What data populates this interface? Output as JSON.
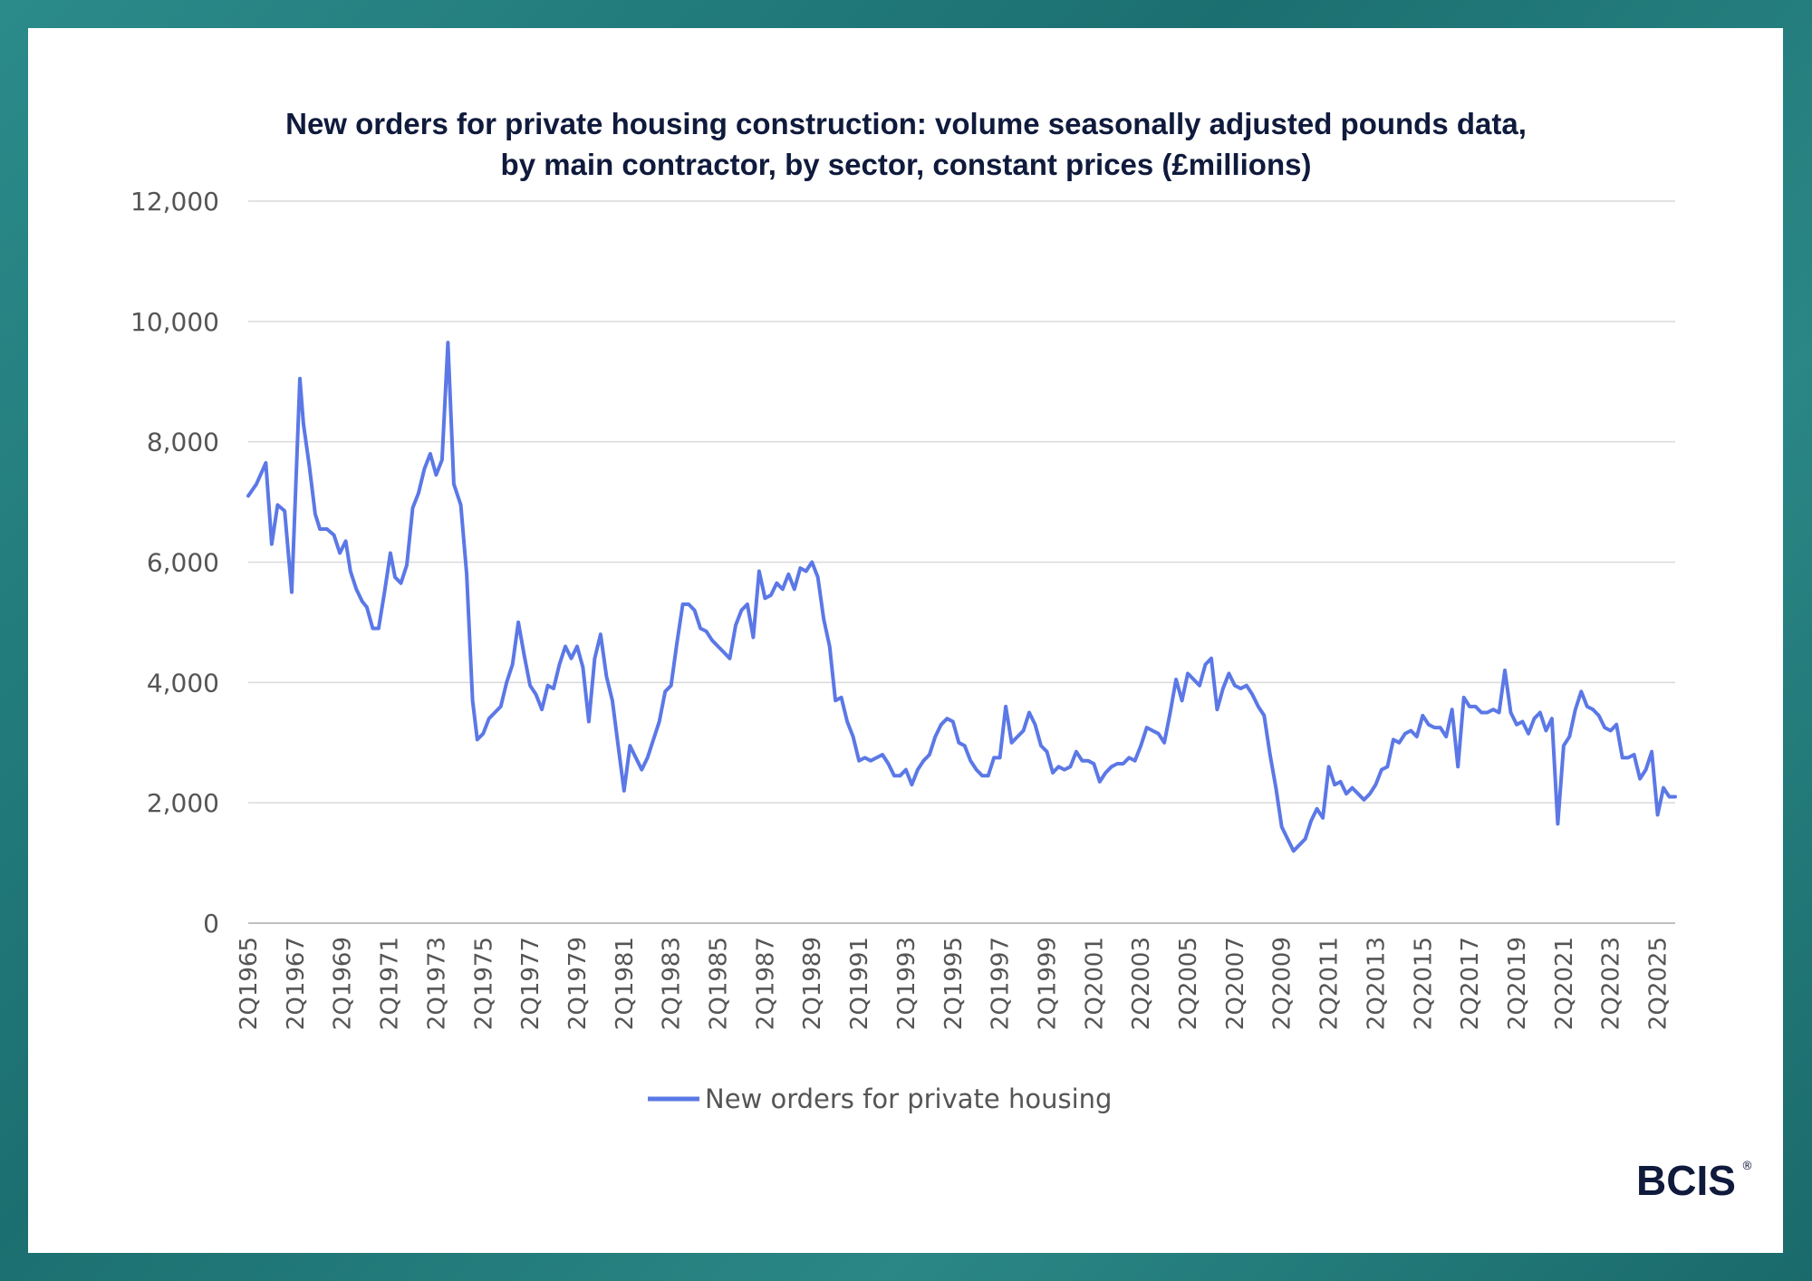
{
  "chart_data": {
    "type": "line",
    "title": "New orders for private housing construction: volume seasonally adjusted pounds data,",
    "subtitle": "by main contractor, by sector, constant prices (£millions)",
    "xlabel": "",
    "ylabel": "",
    "ylim": [
      0,
      12000
    ],
    "yticks": [
      "0",
      "2,000",
      "4,000",
      "6,000",
      "8,000",
      "10,000",
      "12,000"
    ],
    "xticks": [
      "2Q1965",
      "2Q1967",
      "2Q1969",
      "2Q1971",
      "2Q1973",
      "2Q1975",
      "2Q1977",
      "2Q1979",
      "2Q1981",
      "2Q1983",
      "2Q1985",
      "2Q1987",
      "2Q1989",
      "2Q1991",
      "2Q1993",
      "2Q1995",
      "2Q1997",
      "2Q1999",
      "2Q2001",
      "2Q2003",
      "2Q2005",
      "2Q2007",
      "2Q2009",
      "2Q2011",
      "2Q2013",
      "2Q2015",
      "2Q2017",
      "2Q2019",
      "2Q2021",
      "2Q2023",
      "2Q2025"
    ],
    "grid": true,
    "legend_position": "bottom",
    "series": [
      {
        "name": "New orders for private housing",
        "color": "#5b78e6",
        "points": [
          [
            1965.25,
            7100
          ],
          [
            1965.6,
            7300
          ],
          [
            1966.0,
            7650
          ],
          [
            1966.25,
            6300
          ],
          [
            1966.5,
            6950
          ],
          [
            1966.8,
            6850
          ],
          [
            1967.1,
            5500
          ],
          [
            1967.45,
            9050
          ],
          [
            1967.6,
            8300
          ],
          [
            1967.85,
            7600
          ],
          [
            1968.1,
            6800
          ],
          [
            1968.3,
            6550
          ],
          [
            1968.6,
            6550
          ],
          [
            1968.9,
            6450
          ],
          [
            1969.15,
            6150
          ],
          [
            1969.4,
            6350
          ],
          [
            1969.6,
            5850
          ],
          [
            1969.85,
            5550
          ],
          [
            1970.1,
            5350
          ],
          [
            1970.3,
            5250
          ],
          [
            1970.55,
            4900
          ],
          [
            1970.8,
            4900
          ],
          [
            1971.05,
            5500
          ],
          [
            1971.3,
            6150
          ],
          [
            1971.5,
            5750
          ],
          [
            1971.75,
            5650
          ],
          [
            1972.0,
            5950
          ],
          [
            1972.25,
            6900
          ],
          [
            1972.5,
            7150
          ],
          [
            1972.75,
            7550
          ],
          [
            1973.0,
            7800
          ],
          [
            1973.25,
            7450
          ],
          [
            1973.5,
            7700
          ],
          [
            1973.75,
            9650
          ],
          [
            1974.0,
            7300
          ],
          [
            1974.3,
            6950
          ],
          [
            1974.55,
            5800
          ],
          [
            1974.8,
            3700
          ],
          [
            1975.0,
            3050
          ],
          [
            1975.25,
            3150
          ],
          [
            1975.5,
            3400
          ],
          [
            1975.75,
            3500
          ],
          [
            1976.0,
            3600
          ],
          [
            1976.25,
            4000
          ],
          [
            1976.5,
            4300
          ],
          [
            1976.75,
            5000
          ],
          [
            1977.0,
            4450
          ],
          [
            1977.25,
            3950
          ],
          [
            1977.5,
            3800
          ],
          [
            1977.75,
            3550
          ],
          [
            1978.0,
            3950
          ],
          [
            1978.25,
            3900
          ],
          [
            1978.5,
            4300
          ],
          [
            1978.75,
            4600
          ],
          [
            1979.0,
            4400
          ],
          [
            1979.25,
            4600
          ],
          [
            1979.5,
            4250
          ],
          [
            1979.75,
            3350
          ],
          [
            1980.0,
            4400
          ],
          [
            1980.25,
            4800
          ],
          [
            1980.5,
            4100
          ],
          [
            1980.75,
            3700
          ],
          [
            1981.0,
            2950
          ],
          [
            1981.25,
            2200
          ],
          [
            1981.5,
            2950
          ],
          [
            1981.75,
            2750
          ],
          [
            1982.0,
            2550
          ],
          [
            1982.25,
            2750
          ],
          [
            1982.5,
            3050
          ],
          [
            1982.75,
            3350
          ],
          [
            1983.0,
            3850
          ],
          [
            1983.25,
            3950
          ],
          [
            1983.5,
            4650
          ],
          [
            1983.75,
            5300
          ],
          [
            1984.0,
            5300
          ],
          [
            1984.25,
            5200
          ],
          [
            1984.5,
            4900
          ],
          [
            1984.75,
            4850
          ],
          [
            1985.0,
            4700
          ],
          [
            1985.25,
            4600
          ],
          [
            1985.5,
            4500
          ],
          [
            1985.75,
            4400
          ],
          [
            1986.0,
            4950
          ],
          [
            1986.25,
            5200
          ],
          [
            1986.5,
            5300
          ],
          [
            1986.75,
            4750
          ],
          [
            1987.0,
            5850
          ],
          [
            1987.25,
            5400
          ],
          [
            1987.5,
            5450
          ],
          [
            1987.75,
            5650
          ],
          [
            1988.0,
            5550
          ],
          [
            1988.25,
            5800
          ],
          [
            1988.5,
            5550
          ],
          [
            1988.75,
            5900
          ],
          [
            1989.0,
            5850
          ],
          [
            1989.25,
            6000
          ],
          [
            1989.5,
            5750
          ],
          [
            1989.75,
            5050
          ],
          [
            1990.0,
            4600
          ],
          [
            1990.25,
            3700
          ],
          [
            1990.5,
            3750
          ],
          [
            1990.75,
            3350
          ],
          [
            1991.0,
            3100
          ],
          [
            1991.25,
            2700
          ],
          [
            1991.5,
            2750
          ],
          [
            1991.75,
            2700
          ],
          [
            1992.0,
            2750
          ],
          [
            1992.25,
            2800
          ],
          [
            1992.5,
            2650
          ],
          [
            1992.75,
            2450
          ],
          [
            1993.0,
            2450
          ],
          [
            1993.25,
            2550
          ],
          [
            1993.5,
            2300
          ],
          [
            1993.75,
            2550
          ],
          [
            1994.0,
            2700
          ],
          [
            1994.25,
            2800
          ],
          [
            1994.5,
            3100
          ],
          [
            1994.75,
            3300
          ],
          [
            1995.0,
            3400
          ],
          [
            1995.25,
            3350
          ],
          [
            1995.5,
            3000
          ],
          [
            1995.75,
            2950
          ],
          [
            1996.0,
            2700
          ],
          [
            1996.25,
            2550
          ],
          [
            1996.5,
            2450
          ],
          [
            1996.75,
            2450
          ],
          [
            1997.0,
            2750
          ],
          [
            1997.25,
            2750
          ],
          [
            1997.5,
            3600
          ],
          [
            1997.75,
            3000
          ],
          [
            1998.0,
            3100
          ],
          [
            1998.25,
            3200
          ],
          [
            1998.5,
            3500
          ],
          [
            1998.75,
            3300
          ],
          [
            1999.0,
            2950
          ],
          [
            1999.25,
            2850
          ],
          [
            1999.5,
            2500
          ],
          [
            1999.75,
            2600
          ],
          [
            2000.0,
            2550
          ],
          [
            2000.25,
            2600
          ],
          [
            2000.5,
            2850
          ],
          [
            2000.75,
            2700
          ],
          [
            2001.0,
            2700
          ],
          [
            2001.25,
            2650
          ],
          [
            2001.5,
            2350
          ],
          [
            2001.75,
            2500
          ],
          [
            2002.0,
            2600
          ],
          [
            2002.25,
            2650
          ],
          [
            2002.5,
            2650
          ],
          [
            2002.75,
            2750
          ],
          [
            2003.0,
            2700
          ],
          [
            2003.25,
            2950
          ],
          [
            2003.5,
            3250
          ],
          [
            2003.75,
            3200
          ],
          [
            2004.0,
            3150
          ],
          [
            2004.25,
            3000
          ],
          [
            2004.5,
            3500
          ],
          [
            2004.75,
            4050
          ],
          [
            2005.0,
            3700
          ],
          [
            2005.25,
            4150
          ],
          [
            2005.5,
            4050
          ],
          [
            2005.75,
            3950
          ],
          [
            2006.0,
            4300
          ],
          [
            2006.25,
            4400
          ],
          [
            2006.5,
            3550
          ],
          [
            2006.75,
            3900
          ],
          [
            2007.0,
            4150
          ],
          [
            2007.25,
            3950
          ],
          [
            2007.5,
            3900
          ],
          [
            2007.75,
            3950
          ],
          [
            2008.0,
            3800
          ],
          [
            2008.25,
            3600
          ],
          [
            2008.5,
            3450
          ],
          [
            2008.75,
            2800
          ],
          [
            2009.0,
            2250
          ],
          [
            2009.25,
            1600
          ],
          [
            2009.5,
            1400
          ],
          [
            2009.75,
            1200
          ],
          [
            2010.0,
            1300
          ],
          [
            2010.25,
            1400
          ],
          [
            2010.5,
            1700
          ],
          [
            2010.75,
            1900
          ],
          [
            2011.0,
            1750
          ],
          [
            2011.25,
            2600
          ],
          [
            2011.5,
            2300
          ],
          [
            2011.75,
            2350
          ],
          [
            2012.0,
            2150
          ],
          [
            2012.25,
            2250
          ],
          [
            2012.5,
            2150
          ],
          [
            2012.75,
            2050
          ],
          [
            2013.0,
            2150
          ],
          [
            2013.25,
            2300
          ],
          [
            2013.5,
            2550
          ],
          [
            2013.75,
            2600
          ],
          [
            2014.0,
            3050
          ],
          [
            2014.25,
            3000
          ],
          [
            2014.5,
            3150
          ],
          [
            2014.75,
            3200
          ],
          [
            2015.0,
            3100
          ],
          [
            2015.25,
            3450
          ],
          [
            2015.5,
            3300
          ],
          [
            2015.75,
            3250
          ],
          [
            2016.0,
            3250
          ],
          [
            2016.25,
            3100
          ],
          [
            2016.5,
            3550
          ],
          [
            2016.75,
            2600
          ],
          [
            2017.0,
            3750
          ],
          [
            2017.25,
            3600
          ],
          [
            2017.5,
            3600
          ],
          [
            2017.75,
            3500
          ],
          [
            2018.0,
            3500
          ],
          [
            2018.25,
            3550
          ],
          [
            2018.5,
            3500
          ],
          [
            2018.75,
            4200
          ],
          [
            2019.0,
            3500
          ],
          [
            2019.25,
            3300
          ],
          [
            2019.5,
            3350
          ],
          [
            2019.75,
            3150
          ],
          [
            2020.0,
            3400
          ],
          [
            2020.25,
            3500
          ],
          [
            2020.5,
            3200
          ],
          [
            2020.75,
            3400
          ],
          [
            2021.0,
            1650
          ],
          [
            2021.25,
            2950
          ],
          [
            2021.5,
            3100
          ],
          [
            2021.75,
            3550
          ],
          [
            2022.0,
            3850
          ],
          [
            2022.25,
            3600
          ],
          [
            2022.5,
            3550
          ],
          [
            2022.75,
            3450
          ],
          [
            2023.0,
            3250
          ],
          [
            2023.25,
            3200
          ],
          [
            2023.5,
            3300
          ],
          [
            2023.75,
            2750
          ],
          [
            2024.0,
            2750
          ],
          [
            2024.25,
            2800
          ],
          [
            2024.5,
            2400
          ],
          [
            2024.75,
            2550
          ],
          [
            2025.0,
            2850
          ],
          [
            2025.25,
            1800
          ],
          [
            2025.5,
            2250
          ],
          [
            2025.75,
            2100
          ],
          [
            2026.0,
            2100
          ]
        ]
      }
    ]
  },
  "logo": {
    "text": "BCIS",
    "mark": "®"
  }
}
